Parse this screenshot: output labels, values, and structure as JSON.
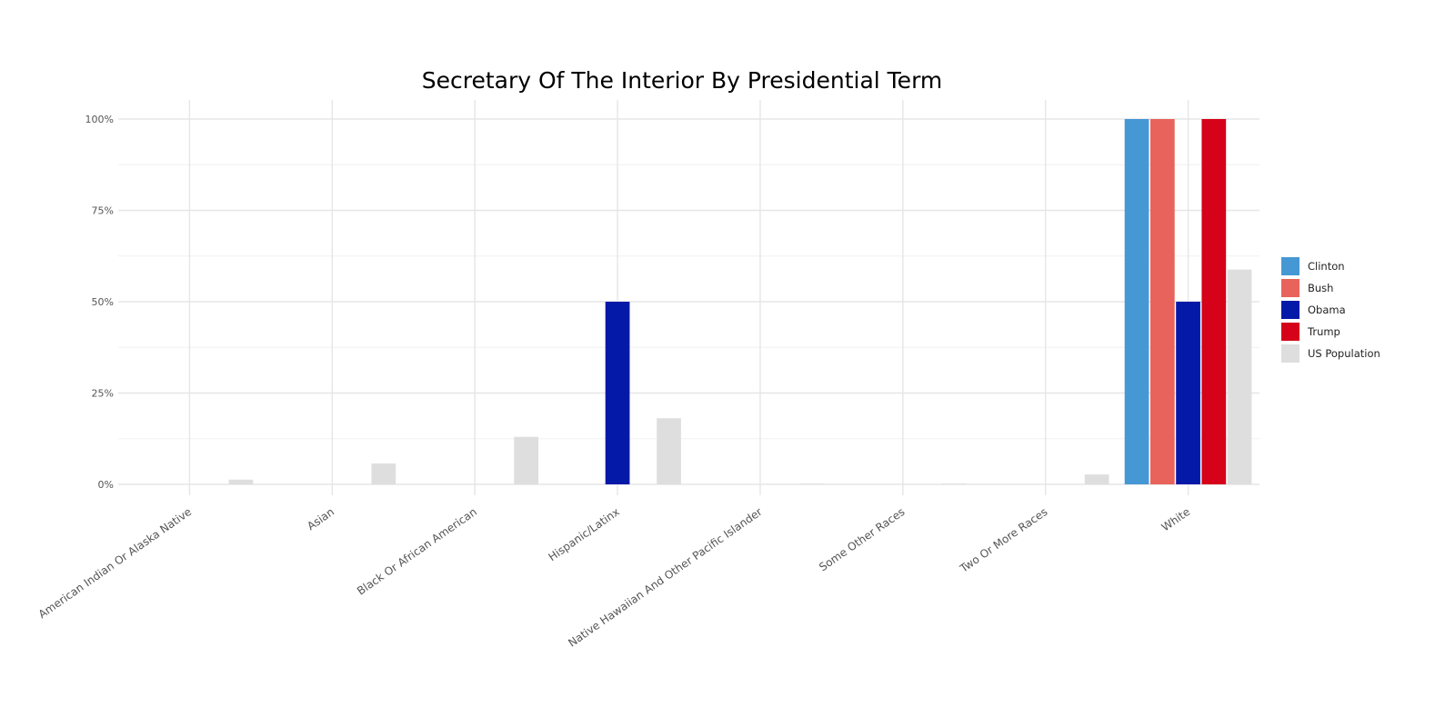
{
  "chart_data": {
    "type": "bar",
    "title": "Secretary Of The Interior By Presidential Term",
    "xlabel": "",
    "ylabel": "",
    "ylim": [
      0,
      1
    ],
    "y_ticks": [
      {
        "value": 0,
        "label": "0%"
      },
      {
        "value": 0.25,
        "label": "25%"
      },
      {
        "value": 0.5,
        "label": "50%"
      },
      {
        "value": 0.75,
        "label": "75%"
      },
      {
        "value": 1,
        "label": "100%"
      }
    ],
    "categories": [
      "American Indian Or Alaska Native",
      "Asian",
      "Black Or African American",
      "Hispanic/Latinx",
      "Native Hawaiian And Other Pacific Islander",
      "Some Other Races",
      "Two Or More Races",
      "White"
    ],
    "series": [
      {
        "name": "Clinton",
        "color": "#4698d5",
        "values": [
          0,
          0,
          0,
          0,
          0,
          0,
          0,
          1
        ]
      },
      {
        "name": "Bush",
        "color": "#e8635c",
        "values": [
          0,
          0,
          0,
          0,
          0,
          0,
          0,
          1
        ]
      },
      {
        "name": "Obama",
        "color": "#0519a8",
        "values": [
          0,
          0,
          0,
          0.5,
          0,
          0,
          0,
          0.5
        ]
      },
      {
        "name": "Trump",
        "color": "#d50219",
        "values": [
          0,
          0,
          0,
          0,
          0,
          0,
          0,
          1
        ]
      },
      {
        "name": "US Population",
        "color": "#dedede",
        "values": [
          0.013,
          0.057,
          0.13,
          0.181,
          0.002,
          0.002,
          0.027,
          0.588
        ]
      }
    ],
    "grid": true,
    "legend_position": "right"
  }
}
